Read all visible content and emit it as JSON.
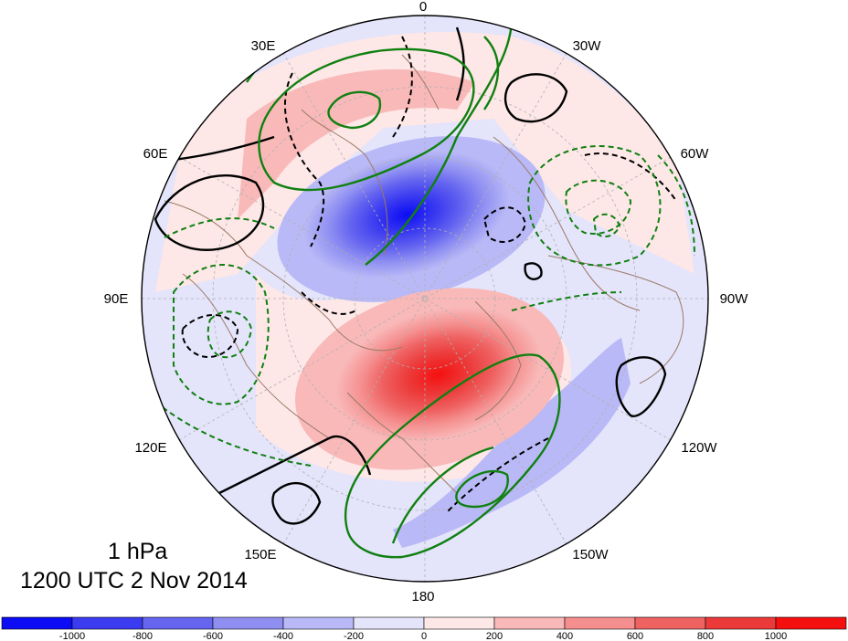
{
  "title": {
    "level": "1 hPa",
    "time": "1200 UTC 2 Nov 2014"
  },
  "longitude_labels": [
    "0",
    "30W",
    "60W",
    "90W",
    "120W",
    "150W",
    "180",
    "150E",
    "120E",
    "90E",
    "60E",
    "30E"
  ],
  "colorbar": {
    "ticks": [
      "-1000",
      "-800",
      "-600",
      "-400",
      "-200",
      "0",
      "200",
      "400",
      "600",
      "800",
      "1000"
    ],
    "colors": [
      "#0c0cf5",
      "#3b3bf0",
      "#6565f0",
      "#8f8ff2",
      "#b9b9f7",
      "#e4e4fb",
      "#fde7e7",
      "#f9b9b9",
      "#f58f8f",
      "#ef6262",
      "#ec3a3a",
      "#f51010"
    ]
  },
  "colors": {
    "contour_black": "#000000",
    "contour_green": "#108010",
    "coastline": "#9a7a66",
    "graticule": "#b0b0b0"
  }
}
